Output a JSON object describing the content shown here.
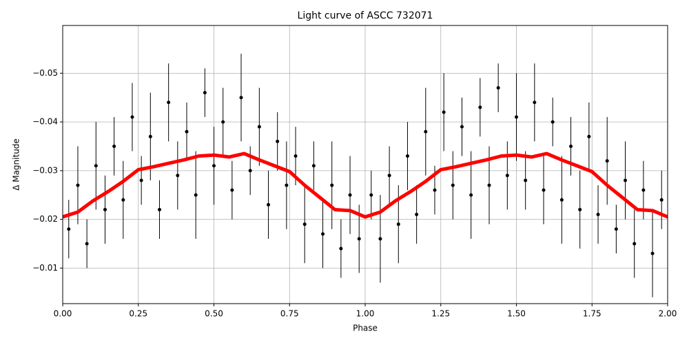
{
  "chart_data": {
    "type": "scatter",
    "title": "Light curve of ASCC 732071",
    "xlabel": "Phase",
    "ylabel": "Δ Magnitude",
    "xlim": [
      0,
      2
    ],
    "ylim": [
      -0.0027,
      -0.0598
    ],
    "grid": true,
    "xticks": [
      {
        "value": 0,
        "label": "0.00"
      },
      {
        "value": 0.25,
        "label": "0.25"
      },
      {
        "value": 0.5,
        "label": "0.50"
      },
      {
        "value": 0.75,
        "label": "0.75"
      },
      {
        "value": 1,
        "label": "1.00"
      },
      {
        "value": 1.25,
        "label": "1.25"
      },
      {
        "value": 1.5,
        "label": "1.50"
      },
      {
        "value": 1.75,
        "label": "1.75"
      },
      {
        "value": 2,
        "label": "2.00"
      }
    ],
    "yticks": [
      {
        "value": -0.05,
        "label": "−0.05"
      },
      {
        "value": -0.04,
        "label": "−0.04"
      },
      {
        "value": -0.03,
        "label": "−0.03"
      },
      {
        "value": -0.02,
        "label": "−0.02"
      },
      {
        "value": -0.01,
        "label": "−0.01"
      }
    ],
    "series": [
      {
        "type": "errorbar",
        "color": "#000000",
        "x": [
          0.02,
          0.05,
          0.08,
          0.11,
          0.14,
          0.17,
          0.2,
          0.23,
          0.26,
          0.29,
          0.32,
          0.35,
          0.38,
          0.41,
          0.44,
          0.47,
          0.5,
          0.53,
          0.56,
          0.59,
          0.62,
          0.65,
          0.68,
          0.71,
          0.74,
          0.77,
          0.8,
          0.83,
          0.86,
          0.89,
          0.92,
          0.95,
          0.98,
          1.02,
          1.05,
          1.08,
          1.11,
          1.14,
          1.17,
          1.2,
          1.23,
          1.26,
          1.29,
          1.32,
          1.35,
          1.38,
          1.41,
          1.44,
          1.47,
          1.5,
          1.53,
          1.56,
          1.59,
          1.62,
          1.65,
          1.68,
          1.71,
          1.74,
          1.77,
          1.8,
          1.83,
          1.86,
          1.89,
          1.92,
          1.95,
          1.98
        ],
        "values": [
          -0.018,
          -0.027,
          -0.015,
          -0.031,
          -0.022,
          -0.035,
          -0.024,
          -0.041,
          -0.028,
          -0.037,
          -0.022,
          -0.044,
          -0.029,
          -0.038,
          -0.025,
          -0.046,
          -0.031,
          -0.04,
          -0.026,
          -0.045,
          -0.03,
          -0.039,
          -0.023,
          -0.036,
          -0.027,
          -0.033,
          -0.019,
          -0.031,
          -0.017,
          -0.027,
          -0.014,
          -0.025,
          -0.016,
          -0.025,
          -0.016,
          -0.029,
          -0.019,
          -0.033,
          -0.021,
          -0.038,
          -0.026,
          -0.042,
          -0.027,
          -0.039,
          -0.025,
          -0.043,
          -0.027,
          -0.047,
          -0.029,
          -0.041,
          -0.028,
          -0.044,
          -0.026,
          -0.04,
          -0.024,
          -0.035,
          -0.022,
          -0.037,
          -0.021,
          -0.032,
          -0.018,
          -0.028,
          -0.015,
          -0.026,
          -0.013,
          -0.024
        ],
        "errors": [
          0.006,
          0.008,
          0.005,
          0.009,
          0.007,
          0.006,
          0.008,
          0.007,
          0.005,
          0.009,
          0.006,
          0.008,
          0.007,
          0.006,
          0.009,
          0.005,
          0.008,
          0.007,
          0.006,
          0.009,
          0.005,
          0.008,
          0.007,
          0.006,
          0.009,
          0.006,
          0.008,
          0.005,
          0.007,
          0.009,
          0.006,
          0.008,
          0.007,
          0.005,
          0.009,
          0.006,
          0.008,
          0.007,
          0.006,
          0.009,
          0.005,
          0.008,
          0.007,
          0.006,
          0.009,
          0.006,
          0.008,
          0.005,
          0.007,
          0.009,
          0.006,
          0.008,
          0.007,
          0.005,
          0.009,
          0.006,
          0.008,
          0.007,
          0.006,
          0.009,
          0.005,
          0.008,
          0.007,
          0.006,
          0.009,
          0.006
        ]
      },
      {
        "type": "line",
        "color": "#ff0000",
        "x": [
          0,
          0.05,
          0.1,
          0.15,
          0.2,
          0.25,
          0.3,
          0.35,
          0.4,
          0.45,
          0.5,
          0.55,
          0.6,
          0.65,
          0.7,
          0.75,
          0.8,
          0.85,
          0.9,
          0.95,
          1,
          1.05,
          1.1,
          1.15,
          1.2,
          1.25,
          1.3,
          1.35,
          1.4,
          1.45,
          1.5,
          1.55,
          1.6,
          1.65,
          1.7,
          1.75,
          1.8,
          1.85,
          1.9,
          1.95,
          2
        ],
        "values": [
          -0.0205,
          -0.0215,
          -0.0238,
          -0.0257,
          -0.0278,
          -0.0302,
          -0.0308,
          -0.0315,
          -0.0322,
          -0.033,
          -0.0332,
          -0.0328,
          -0.0335,
          -0.0322,
          -0.031,
          -0.0298,
          -0.027,
          -0.0245,
          -0.022,
          -0.0218,
          -0.0205,
          -0.0215,
          -0.0238,
          -0.0257,
          -0.0278,
          -0.0302,
          -0.0308,
          -0.0315,
          -0.0322,
          -0.033,
          -0.0332,
          -0.0328,
          -0.0335,
          -0.0322,
          -0.031,
          -0.0298,
          -0.027,
          -0.0245,
          -0.022,
          -0.0218,
          -0.0205
        ]
      }
    ]
  }
}
